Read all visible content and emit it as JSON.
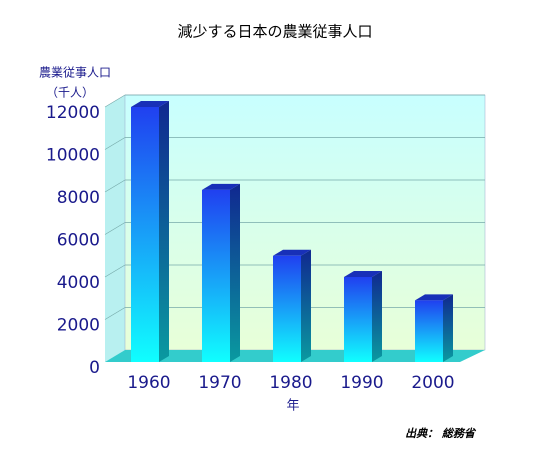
{
  "chart_data": {
    "type": "bar",
    "title": "減少する日本の農業従事人口",
    "y_axis_label": "農業従事人口",
    "y_axis_unit": "（千人）",
    "x_axis_label": "年",
    "source": "出典：  総務省",
    "categories": [
      "1960",
      "1970",
      "1980",
      "1990",
      "2000"
    ],
    "values": [
      12000,
      8100,
      5000,
      4000,
      2900
    ],
    "color": "#2244ee",
    "ylim": [
      0,
      12000
    ],
    "yticks": [
      0,
      2000,
      4000,
      6000,
      8000,
      10000,
      12000
    ],
    "grid": true
  }
}
